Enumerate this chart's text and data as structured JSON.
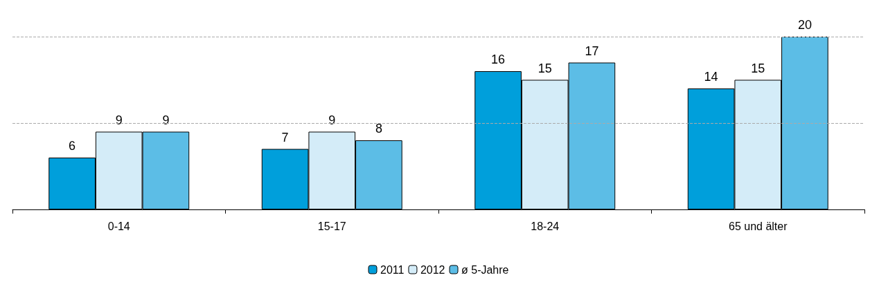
{
  "chart_data": {
    "type": "bar",
    "categories": [
      "0-14",
      "15-17",
      "18-24",
      "65 und älter"
    ],
    "series": [
      {
        "name": "2011",
        "color": "#009fdb",
        "values": [
          6,
          7,
          16,
          14
        ]
      },
      {
        "name": "2012",
        "color": "#d4ecf8",
        "values": [
          9,
          9,
          15,
          15
        ]
      },
      {
        "name": "ø 5-Jahre",
        "color": "#5cbde6",
        "values": [
          9,
          8,
          17,
          20
        ]
      }
    ],
    "ref_lines": [
      {
        "axis": "y",
        "value": 10,
        "color": "#aaaaaa",
        "line_style": "dashed"
      },
      {
        "axis": "y",
        "value": 20,
        "color": "#aaaaaa",
        "line_style": "dashed"
      }
    ],
    "tick_labels": "x",
    "data_labels": true,
    "legend": "bottom"
  }
}
